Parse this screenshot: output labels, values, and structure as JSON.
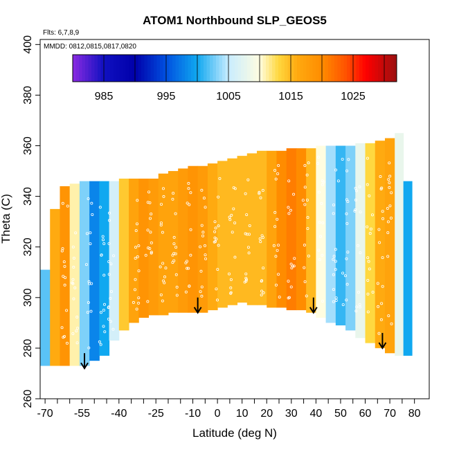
{
  "chart_data": {
    "type": "heatmap",
    "title": "ATOM1 Northbound SLP_GEOS5",
    "annotations": {
      "flights": "Flts: 6,7,8,9",
      "dates": "MMDD: 0812,0815,0817,0820"
    },
    "xlabel": "Latitude (deg N)",
    "ylabel": "Theta (C)",
    "xlim": [
      -72,
      86
    ],
    "ylim": [
      260,
      402
    ],
    "x_tick_labels": [
      "-70",
      "-55",
      "-40",
      "-25",
      "-10",
      "0",
      "10",
      "20",
      "30",
      "40",
      "50",
      "60",
      "70",
      "80"
    ],
    "x_tick_values": [
      -70,
      -55,
      -40,
      -25,
      -10,
      0,
      10,
      20,
      30,
      40,
      50,
      60,
      70,
      80
    ],
    "x_minor_ticks": [
      -65,
      -60,
      -50,
      -45,
      -35,
      -30,
      -20,
      -15,
      -5,
      5,
      15,
      25,
      35,
      45,
      55,
      65,
      75
    ],
    "y_tick_labels": [
      "260",
      "280",
      "300",
      "320",
      "340",
      "360",
      "380",
      "400"
    ],
    "y_tick_values": [
      260,
      280,
      300,
      320,
      340,
      360,
      380,
      400
    ],
    "colorbar": {
      "range": [
        980,
        1032
      ],
      "tick_labels": [
        "985",
        "995",
        "1005",
        "1015",
        "1025"
      ],
      "tick_values": [
        985,
        995,
        1005,
        1015,
        1025
      ],
      "divisions": [
        985,
        990,
        995,
        1000,
        1005,
        1010,
        1015,
        1020,
        1025,
        1030
      ]
    },
    "color_stops": [
      {
        "v": 980,
        "c": "#8a2be2"
      },
      {
        "v": 985,
        "c": "#1010c0"
      },
      {
        "v": 990,
        "c": "#0000aa"
      },
      {
        "v": 995,
        "c": "#0050e0"
      },
      {
        "v": 1000,
        "c": "#10a8f0"
      },
      {
        "v": 1005,
        "c": "#c8ecff"
      },
      {
        "v": 1010,
        "c": "#fffde0"
      },
      {
        "v": 1013,
        "c": "#ffd840"
      },
      {
        "v": 1016,
        "c": "#ffaa10"
      },
      {
        "v": 1020,
        "c": "#ff8c00"
      },
      {
        "v": 1024,
        "c": "#ff5000"
      },
      {
        "v": 1027,
        "c": "#ff0000"
      },
      {
        "v": 1032,
        "c": "#9a1010"
      }
    ],
    "field": [
      {
        "lat": -70,
        "v": 1002,
        "bot": 273,
        "top": 311
      },
      {
        "lat": -66,
        "v": 1016,
        "bot": 273,
        "top": 335
      },
      {
        "lat": -62,
        "v": 1019,
        "bot": 273,
        "top": 344
      },
      {
        "lat": -58,
        "v": 1011,
        "bot": 273,
        "top": 345
      },
      {
        "lat": -54,
        "v": 1003,
        "bot": 273,
        "top": 346
      },
      {
        "lat": -50,
        "v": 998,
        "bot": 275,
        "top": 346
      },
      {
        "lat": -46,
        "v": 1000,
        "bot": 277,
        "top": 346
      },
      {
        "lat": -42,
        "v": 1006,
        "bot": 283,
        "top": 346
      },
      {
        "lat": -38,
        "v": 1014,
        "bot": 287,
        "top": 347
      },
      {
        "lat": -34,
        "v": 1017,
        "bot": 290,
        "top": 347
      },
      {
        "lat": -30,
        "v": 1019,
        "bot": 292,
        "top": 347
      },
      {
        "lat": -26,
        "v": 1018,
        "bot": 293,
        "top": 347
      },
      {
        "lat": -22,
        "v": 1017,
        "bot": 293,
        "top": 349
      },
      {
        "lat": -18,
        "v": 1017,
        "bot": 294,
        "top": 350
      },
      {
        "lat": -14,
        "v": 1018,
        "bot": 294,
        "top": 351
      },
      {
        "lat": -10,
        "v": 1019,
        "bot": 294,
        "top": 352
      },
      {
        "lat": -6,
        "v": 1018,
        "bot": 294,
        "top": 352
      },
      {
        "lat": -2,
        "v": 1016,
        "bot": 295,
        "top": 353
      },
      {
        "lat": 2,
        "v": 1015,
        "bot": 296,
        "top": 354
      },
      {
        "lat": 6,
        "v": 1015,
        "bot": 297,
        "top": 355
      },
      {
        "lat": 10,
        "v": 1015,
        "bot": 298,
        "top": 356
      },
      {
        "lat": 14,
        "v": 1015,
        "bot": 297,
        "top": 357
      },
      {
        "lat": 18,
        "v": 1015,
        "bot": 297,
        "top": 358
      },
      {
        "lat": 22,
        "v": 1017,
        "bot": 296,
        "top": 358
      },
      {
        "lat": 26,
        "v": 1020,
        "bot": 296,
        "top": 358
      },
      {
        "lat": 30,
        "v": 1021,
        "bot": 295,
        "top": 359
      },
      {
        "lat": 34,
        "v": 1020,
        "bot": 295,
        "top": 359
      },
      {
        "lat": 38,
        "v": 1015,
        "bot": 294,
        "top": 359
      },
      {
        "lat": 42,
        "v": 1010,
        "bot": 292,
        "top": 360
      },
      {
        "lat": 46,
        "v": 1004,
        "bot": 290,
        "top": 360
      },
      {
        "lat": 50,
        "v": 1001,
        "bot": 289,
        "top": 360
      },
      {
        "lat": 54,
        "v": 1003,
        "bot": 287,
        "top": 360
      },
      {
        "lat": 58,
        "v": 1008,
        "bot": 284,
        "top": 361
      },
      {
        "lat": 62,
        "v": 1013,
        "bot": 282,
        "top": 361
      },
      {
        "lat": 66,
        "v": 1016,
        "bot": 280,
        "top": 362
      },
      {
        "lat": 70,
        "v": 1017,
        "bot": 278,
        "top": 363
      },
      {
        "lat": 74,
        "v": 1008,
        "bot": 277,
        "top": 365
      },
      {
        "lat": 77,
        "v": 1000,
        "bot": 277,
        "top": 346
      }
    ],
    "arrows": [
      {
        "lat": -54,
        "theta": 272
      },
      {
        "lat": -8,
        "theta": 294
      },
      {
        "lat": 39,
        "theta": 294
      },
      {
        "lat": 67,
        "theta": 280
      }
    ]
  }
}
